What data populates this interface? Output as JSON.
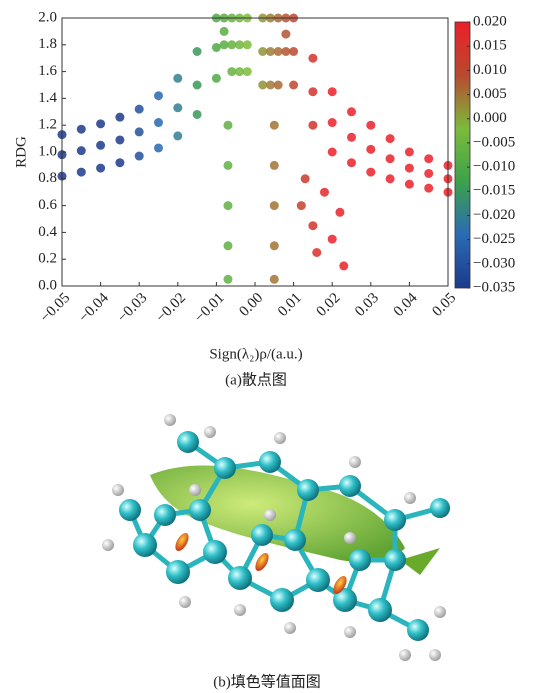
{
  "chart_data": {
    "type": "scatter",
    "ylabel": "RDG",
    "xlabel": "Sign(λ₂)ρ/(a.u.)",
    "caption": "(a)散点图",
    "xlim": [
      -0.05,
      0.05
    ],
    "ylim": [
      0,
      2
    ],
    "xticks": [
      {
        "value": -0.05,
        "label": "−0.05"
      },
      {
        "value": -0.04,
        "label": "−0.04"
      },
      {
        "value": -0.03,
        "label": "−0.03"
      },
      {
        "value": -0.02,
        "label": "−0.02"
      },
      {
        "value": -0.01,
        "label": "−0.01"
      },
      {
        "value": 0,
        "label": "0.00"
      },
      0.01,
      0.02,
      0.03,
      0.04,
      0.05
    ],
    "yticks": [
      {
        "value": 0,
        "label": "0.0"
      },
      0.2,
      0.4,
      0.6,
      0.8,
      {
        "value": 1,
        "label": "1.0"
      },
      1.2,
      1.4,
      1.6,
      1.8,
      {
        "value": 2,
        "label": "2.0"
      }
    ],
    "x": [
      -0.05,
      -0.05,
      -0.05,
      -0.045,
      -0.045,
      -0.045,
      -0.04,
      -0.04,
      -0.04,
      -0.035,
      -0.035,
      -0.035,
      -0.03,
      -0.03,
      -0.03,
      -0.025,
      -0.025,
      -0.025,
      -0.02,
      -0.02,
      -0.02,
      -0.015,
      -0.015,
      -0.015,
      -0.01,
      -0.01,
      -0.01,
      -0.008,
      -0.008,
      -0.008,
      -0.006,
      -0.006,
      -0.006,
      -0.004,
      -0.004,
      -0.004,
      -0.002,
      -0.002,
      -0.002,
      0.002,
      0.002,
      0.002,
      0.004,
      0.004,
      0.004,
      0.006,
      0.006,
      0.006,
      -0.007,
      -0.007,
      -0.007,
      -0.007,
      -0.007,
      0.005,
      0.005,
      0.005,
      0.005,
      0.005,
      0.008,
      0.008,
      0.008,
      0.01,
      0.01,
      0.01,
      0.015,
      0.015,
      0.015,
      0.02,
      0.02,
      0.02,
      0.025,
      0.025,
      0.025,
      0.03,
      0.03,
      0.03,
      0.035,
      0.035,
      0.035,
      0.04,
      0.04,
      0.04,
      0.045,
      0.045,
      0.045,
      0.05,
      0.05,
      0.05,
      0.012,
      0.015,
      0.018,
      0.02,
      0.022,
      0.023,
      0.016,
      0.013
    ],
    "y": [
      0.82,
      0.98,
      1.13,
      0.85,
      1.01,
      1.17,
      0.88,
      1.05,
      1.21,
      0.92,
      1.09,
      1.26,
      0.97,
      1.15,
      1.32,
      1.03,
      1.22,
      1.42,
      1.12,
      1.33,
      1.55,
      1.28,
      1.5,
      1.75,
      1.55,
      1.78,
      2.0,
      1.8,
      1.9,
      2.0,
      1.6,
      1.8,
      2.0,
      1.6,
      1.8,
      2.0,
      1.6,
      1.8,
      2.0,
      1.5,
      1.75,
      2.0,
      1.5,
      1.75,
      2.0,
      1.5,
      1.75,
      2.0,
      0.05,
      0.3,
      0.6,
      0.9,
      1.2,
      0.05,
      0.3,
      0.6,
      0.9,
      1.2,
      1.75,
      1.88,
      2.0,
      1.5,
      1.75,
      2.0,
      1.2,
      1.45,
      1.7,
      1.0,
      1.22,
      1.45,
      0.92,
      1.11,
      1.3,
      0.85,
      1.02,
      1.2,
      0.8,
      0.95,
      1.1,
      0.76,
      0.88,
      1.0,
      0.73,
      0.84,
      0.95,
      0.7,
      0.8,
      0.9,
      0.6,
      0.45,
      0.7,
      0.35,
      0.55,
      0.15,
      0.25,
      0.8
    ],
    "colorbar": {
      "lim": [
        -0.035,
        0.02
      ],
      "colors": [
        "#1c3a8c",
        "#2a6bb5",
        "#3da24a",
        "#7cbb3b",
        "#b84a30",
        "#ec2029"
      ],
      "ticks": [
        {
          "value": 0.02,
          "label": "0.020"
        },
        0.015,
        {
          "value": 0.01,
          "label": "0.010"
        },
        0.005,
        {
          "value": 0,
          "label": "0.000"
        },
        {
          "value": -0.005,
          "label": "−0.005"
        },
        {
          "value": -0.01,
          "label": "−0.010"
        },
        {
          "value": -0.015,
          "label": "−0.015"
        },
        {
          "value": -0.02,
          "label": "−0.020"
        },
        {
          "value": -0.025,
          "label": "−0.025"
        },
        {
          "value": -0.03,
          "label": "−0.030"
        },
        {
          "value": -0.035,
          "label": "−0.035"
        }
      ]
    }
  },
  "figure_b": {
    "caption": "(b)填色等值面图"
  }
}
